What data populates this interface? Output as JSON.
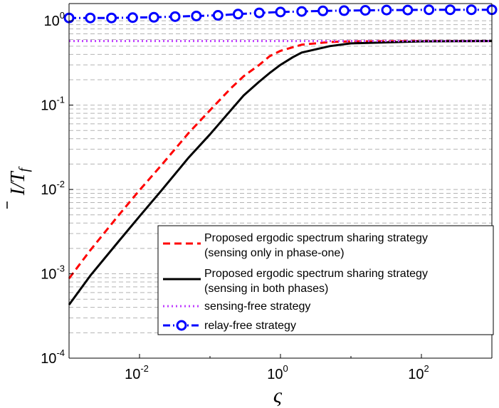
{
  "chart_data": {
    "type": "line",
    "title": "",
    "xlabel": "ς",
    "ylabel": {
      "base": "I",
      "sep": "/",
      "sym": "T",
      "sub": "f"
    },
    "xscale": "log",
    "yscale": "log",
    "xlim": [
      0.001,
      1000
    ],
    "ylim": [
      0.0001,
      1.6
    ],
    "grid": "y-major-and-minor-dashed",
    "legend_position": "bottom-right",
    "x_ticks": [
      {
        "base": "10",
        "exp": "-2",
        "value": 0.01
      },
      {
        "base": "10",
        "exp": "0",
        "value": 1
      },
      {
        "base": "10",
        "exp": "2",
        "value": 100
      }
    ],
    "y_ticks": [
      {
        "base": "10",
        "exp": "-4",
        "value": 0.0001
      },
      {
        "base": "10",
        "exp": "-3",
        "value": 0.001
      },
      {
        "base": "10",
        "exp": "-2",
        "value": 0.01
      },
      {
        "base": "10",
        "exp": "-1",
        "value": 0.1
      },
      {
        "base": "10",
        "exp": "0",
        "value": 1
      }
    ],
    "series": [
      {
        "name": "Proposed ergodic spectrum sharing strategy",
        "name_line2": "(sensing only in phase-one)",
        "color": "#ff0000",
        "style": "dashed",
        "x": [
          0.001,
          0.002,
          0.005,
          0.01,
          0.02,
          0.05,
          0.1,
          0.2,
          0.3,
          0.5,
          0.7,
          1,
          2,
          5,
          10,
          100,
          1000
        ],
        "y": [
          0.00088,
          0.0019,
          0.0049,
          0.0098,
          0.019,
          0.047,
          0.087,
          0.16,
          0.22,
          0.3,
          0.38,
          0.44,
          0.52,
          0.56,
          0.57,
          0.575,
          0.575
        ]
      },
      {
        "name": "Proposed ergodic spectrum sharing strategy",
        "name_line2": "(sensing in both phases)",
        "color": "#000000",
        "style": "solid",
        "x": [
          0.001,
          0.002,
          0.005,
          0.01,
          0.02,
          0.05,
          0.1,
          0.2,
          0.3,
          0.5,
          0.7,
          1,
          1.5,
          2,
          5,
          10,
          100,
          1000
        ],
        "y": [
          0.00043,
          0.00095,
          0.0024,
          0.0048,
          0.0095,
          0.024,
          0.045,
          0.088,
          0.13,
          0.19,
          0.24,
          0.3,
          0.37,
          0.42,
          0.5,
          0.54,
          0.57,
          0.575
        ]
      },
      {
        "name": "sensing-free strategy",
        "color": "#bf3fff",
        "style": "dotted",
        "x": [
          0.001,
          1000
        ],
        "y": [
          0.575,
          0.575
        ]
      },
      {
        "name": "relay-free strategy",
        "color": "#0000ff",
        "style": "dash-dot-circle",
        "x": [
          0.001,
          0.002,
          0.004,
          0.008,
          0.016,
          0.032,
          0.064,
          0.13,
          0.25,
          0.5,
          1,
          2,
          4,
          8,
          16,
          32,
          64,
          128,
          256,
          512,
          1000
        ],
        "y": [
          1.08,
          1.08,
          1.08,
          1.09,
          1.1,
          1.12,
          1.14,
          1.16,
          1.2,
          1.24,
          1.27,
          1.29,
          1.31,
          1.32,
          1.33,
          1.34,
          1.34,
          1.35,
          1.35,
          1.35,
          1.35
        ]
      }
    ]
  }
}
